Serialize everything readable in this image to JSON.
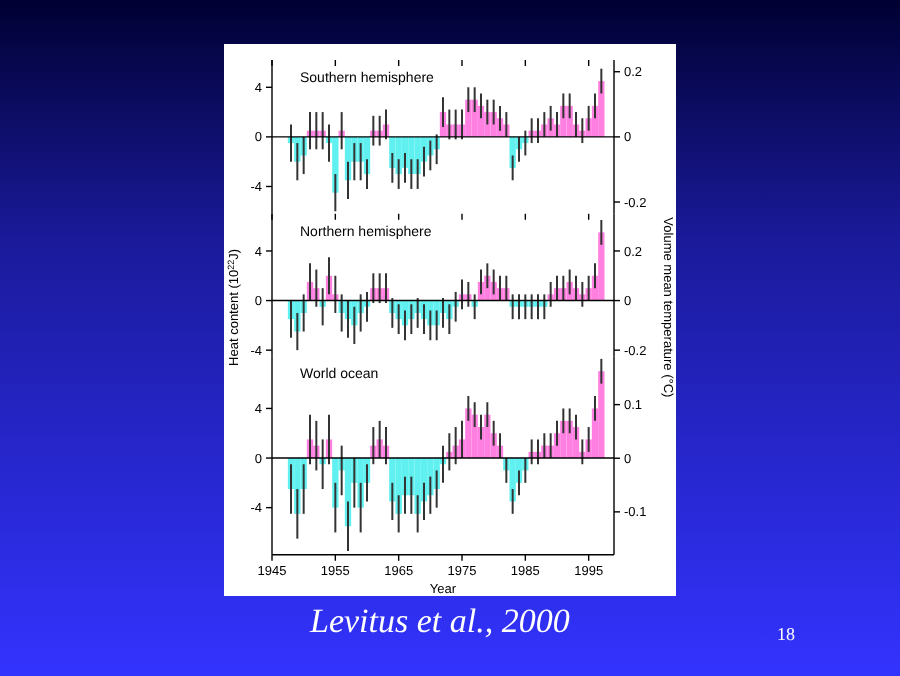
{
  "chart_data": [
    {
      "type": "bar",
      "title": "Southern hemisphere",
      "x": [
        1948,
        1949,
        1950,
        1951,
        1952,
        1953,
        1954,
        1955,
        1956,
        1957,
        1958,
        1959,
        1960,
        1961,
        1962,
        1963,
        1964,
        1965,
        1966,
        1967,
        1968,
        1969,
        1970,
        1971,
        1972,
        1973,
        1974,
        1975,
        1976,
        1977,
        1978,
        1979,
        1980,
        1981,
        1982,
        1983,
        1984,
        1985,
        1986,
        1987,
        1988,
        1989,
        1990,
        1991,
        1992,
        1993,
        1994,
        1995,
        1996,
        1997
      ],
      "values": [
        -0.5,
        -2,
        -1.5,
        0.5,
        0.5,
        0.5,
        -0.5,
        -4.5,
        0.5,
        -3.5,
        -2,
        -2,
        -3,
        0.5,
        0.5,
        1,
        -2.5,
        -3,
        -2.5,
        -3,
        -3,
        -2,
        -1.5,
        -1,
        2,
        1,
        1,
        1,
        3,
        3,
        2.5,
        2,
        2,
        1.5,
        1,
        -2.5,
        -1,
        -0.5,
        0.5,
        0.5,
        1,
        1.5,
        1,
        2.5,
        2.5,
        1,
        0.5,
        1.5,
        2.5,
        4.5
      ],
      "errors": [
        1.5,
        1.5,
        1.5,
        1.5,
        1.5,
        1.5,
        1.5,
        1.5,
        1.5,
        1.5,
        1.5,
        1.5,
        1.2,
        1.2,
        1.2,
        1.2,
        1.2,
        1.2,
        1.2,
        1.2,
        1.2,
        1.2,
        1.2,
        1.2,
        1.2,
        1.2,
        1.2,
        1.2,
        1,
        1,
        1,
        1,
        1,
        1,
        1,
        1,
        1,
        1,
        1,
        1,
        1,
        1,
        1,
        1,
        1,
        1,
        1,
        1,
        1,
        1
      ],
      "colors": [
        "#60f0f0",
        "#60f0f0",
        "#60f0f0",
        "#ff80e0",
        "#ff80e0",
        "#ff80e0",
        "#60f0f0",
        "#60f0f0",
        "#ff80e0",
        "#60f0f0",
        "#60f0f0",
        "#60f0f0",
        "#60f0f0",
        "#ff80e0",
        "#ff80e0",
        "#ff80e0",
        "#60f0f0",
        "#60f0f0",
        "#60f0f0",
        "#60f0f0",
        "#60f0f0",
        "#60f0f0",
        "#60f0f0",
        "#60f0f0",
        "#ff80e0",
        "#ff80e0",
        "#ff80e0",
        "#ff80e0",
        "#ff80e0",
        "#ff80e0",
        "#ff80e0",
        "#ff80e0",
        "#ff80e0",
        "#ff80e0",
        "#ff80e0",
        "#60f0f0",
        "#60f0f0",
        "#60f0f0",
        "#ff80e0",
        "#ff80e0",
        "#ff80e0",
        "#ff80e0",
        "#ff80e0",
        "#ff80e0",
        "#ff80e0",
        "#ff80e0",
        "#ff80e0",
        "#ff80e0",
        "#ff80e0",
        "#ff80e0"
      ],
      "xlim": [
        1945,
        1999
      ],
      "xticks": [
        1945,
        1955,
        1965,
        1975,
        1985,
        1995
      ],
      "ylim": [
        -6.2,
        6.2
      ],
      "yticks": [
        -4,
        0,
        4
      ],
      "y2lim": [
        -0.236,
        0.236
      ],
      "y2ticks": [
        -0.2,
        0,
        0.2
      ],
      "tick_labels": "y"
    },
    {
      "type": "bar",
      "title": "Northern hemisphere",
      "ylabel": "Heat content (10$^{22}$J)",
      "y2label": "Volume mean temperature (°C)",
      "x": [
        1948,
        1949,
        1950,
        1951,
        1952,
        1953,
        1954,
        1955,
        1956,
        1957,
        1958,
        1959,
        1960,
        1961,
        1962,
        1963,
        1964,
        1965,
        1966,
        1967,
        1968,
        1969,
        1970,
        1971,
        1972,
        1973,
        1974,
        1975,
        1976,
        1977,
        1978,
        1979,
        1980,
        1981,
        1982,
        1983,
        1984,
        1985,
        1986,
        1987,
        1988,
        1989,
        1990,
        1991,
        1992,
        1993,
        1994,
        1995,
        1996,
        1997
      ],
      "values": [
        -1.5,
        -2.5,
        -1,
        1.5,
        1,
        -0.5,
        2,
        0.5,
        -1,
        -1.5,
        -2,
        -1,
        -0.5,
        1,
        1,
        1,
        -1,
        -1.5,
        -2,
        -1.5,
        -1,
        -1.5,
        -2,
        -2,
        -1,
        -1.5,
        -0.5,
        0.5,
        0.5,
        -0.5,
        1.5,
        2,
        1.5,
        1,
        1,
        -0.5,
        -0.5,
        -0.5,
        -0.5,
        -0.5,
        -0.5,
        0.5,
        1,
        1,
        1.5,
        1,
        0.5,
        1,
        2,
        5.5
      ],
      "errors": [
        1.5,
        1.5,
        1.5,
        1.5,
        1.5,
        1.5,
        1.5,
        1.5,
        1.5,
        1.5,
        1.5,
        1.5,
        1.2,
        1.2,
        1.2,
        1.2,
        1.2,
        1.2,
        1.2,
        1.2,
        1.2,
        1.2,
        1.2,
        1.2,
        1.2,
        1.2,
        1.2,
        1.2,
        1,
        1,
        1,
        1,
        1,
        1,
        1,
        1,
        1,
        1,
        1,
        1,
        1,
        1,
        1,
        1,
        1,
        1,
        1,
        1,
        1,
        1
      ],
      "colors": [
        "#60f0f0",
        "#60f0f0",
        "#60f0f0",
        "#ff80e0",
        "#ff80e0",
        "#60f0f0",
        "#ff80e0",
        "#ff80e0",
        "#60f0f0",
        "#60f0f0",
        "#60f0f0",
        "#60f0f0",
        "#60f0f0",
        "#ff80e0",
        "#ff80e0",
        "#ff80e0",
        "#60f0f0",
        "#60f0f0",
        "#60f0f0",
        "#60f0f0",
        "#60f0f0",
        "#60f0f0",
        "#60f0f0",
        "#60f0f0",
        "#60f0f0",
        "#60f0f0",
        "#60f0f0",
        "#ff80e0",
        "#ff80e0",
        "#60f0f0",
        "#ff80e0",
        "#ff80e0",
        "#ff80e0",
        "#ff80e0",
        "#ff80e0",
        "#60f0f0",
        "#60f0f0",
        "#60f0f0",
        "#60f0f0",
        "#60f0f0",
        "#60f0f0",
        "#ff80e0",
        "#ff80e0",
        "#ff80e0",
        "#ff80e0",
        "#ff80e0",
        "#ff80e0",
        "#ff80e0",
        "#ff80e0",
        "#ff80e0"
      ],
      "xlim": [
        1945,
        1999
      ],
      "xticks": [
        1945,
        1955,
        1965,
        1975,
        1985,
        1995
      ],
      "ylim": [
        -4.5,
        7
      ],
      "yticks": [
        -4,
        0,
        4
      ],
      "y2lim": [
        -0.225,
        0.35
      ],
      "y2ticks": [
        -0.2,
        0,
        0.2
      ],
      "tick_labels": "y"
    },
    {
      "type": "bar",
      "title": "World ocean",
      "xlabel": "Year",
      "x": [
        1948,
        1949,
        1950,
        1951,
        1952,
        1953,
        1954,
        1955,
        1956,
        1957,
        1958,
        1959,
        1960,
        1961,
        1962,
        1963,
        1964,
        1965,
        1966,
        1967,
        1968,
        1969,
        1970,
        1971,
        1972,
        1973,
        1974,
        1975,
        1976,
        1977,
        1978,
        1979,
        1980,
        1981,
        1982,
        1983,
        1984,
        1985,
        1986,
        1987,
        1988,
        1989,
        1990,
        1991,
        1992,
        1993,
        1994,
        1995,
        1996,
        1997
      ],
      "values": [
        -2.5,
        -4.5,
        -2.5,
        1.5,
        1,
        -0.5,
        1.5,
        -4,
        -1,
        -5.5,
        -2,
        -4,
        -2,
        1,
        1.5,
        1,
        -3.5,
        -4.5,
        -3,
        -3,
        -4.5,
        -3.5,
        -3,
        -2.5,
        -0.5,
        0.5,
        1,
        1.5,
        4,
        3.5,
        2.5,
        3.5,
        2,
        1,
        -1,
        -3.5,
        -2,
        -1,
        0.5,
        0.5,
        1,
        1,
        2,
        3,
        3,
        2.5,
        0.5,
        1.5,
        4,
        7
      ],
      "errors": [
        2,
        2,
        2,
        2,
        2,
        2,
        2,
        2,
        2,
        2,
        2,
        2,
        1.5,
        1.5,
        1.5,
        1.5,
        1.5,
        1.5,
        1.5,
        1.5,
        1.5,
        1.5,
        1.5,
        1.5,
        1.5,
        1.5,
        1.5,
        1.5,
        1,
        1,
        1,
        1,
        1,
        1,
        1,
        1,
        1,
        1,
        1,
        1,
        1,
        1,
        1,
        1,
        1,
        1,
        1,
        1,
        1,
        1
      ],
      "colors": [
        "#60f0f0",
        "#60f0f0",
        "#60f0f0",
        "#ff80e0",
        "#ff80e0",
        "#60f0f0",
        "#ff80e0",
        "#60f0f0",
        "#60f0f0",
        "#60f0f0",
        "#60f0f0",
        "#60f0f0",
        "#60f0f0",
        "#ff80e0",
        "#ff80e0",
        "#ff80e0",
        "#60f0f0",
        "#60f0f0",
        "#60f0f0",
        "#60f0f0",
        "#60f0f0",
        "#60f0f0",
        "#60f0f0",
        "#60f0f0",
        "#60f0f0",
        "#ff80e0",
        "#ff80e0",
        "#ff80e0",
        "#ff80e0",
        "#ff80e0",
        "#ff80e0",
        "#ff80e0",
        "#ff80e0",
        "#ff80e0",
        "#60f0f0",
        "#60f0f0",
        "#60f0f0",
        "#60f0f0",
        "#ff80e0",
        "#ff80e0",
        "#ff80e0",
        "#ff80e0",
        "#ff80e0",
        "#ff80e0",
        "#ff80e0",
        "#ff80e0",
        "#ff80e0",
        "#ff80e0",
        "#ff80e0",
        "#ff80e0"
      ],
      "xlim": [
        1945,
        1999
      ],
      "xticks": [
        1945,
        1955,
        1965,
        1975,
        1985,
        1995
      ],
      "ylim": [
        -7.8,
        8.2
      ],
      "yticks": [
        -4,
        0,
        4
      ],
      "y2lim": [
        -0.18,
        0.19
      ],
      "y2ticks": [
        -0.1,
        0,
        0.1
      ],
      "annotations": [
        "Levitus et al., 2000",
        "18"
      ]
    }
  ]
}
